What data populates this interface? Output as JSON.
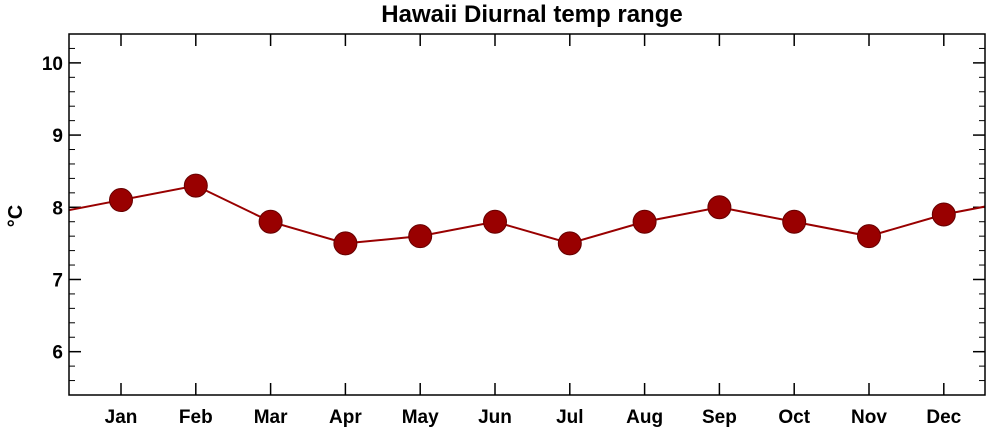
{
  "chart_data": {
    "type": "line",
    "title": "Hawaii Diurnal temp range",
    "xlabel": "",
    "ylabel": "°C",
    "categories": [
      "Jan",
      "Feb",
      "Mar",
      "Apr",
      "May",
      "Jun",
      "Jul",
      "Aug",
      "Sep",
      "Oct",
      "Nov",
      "Dec"
    ],
    "series": [
      {
        "values": [
          8.1,
          8.3,
          7.8,
          7.5,
          7.6,
          7.8,
          7.5,
          7.8,
          8.0,
          7.8,
          7.6,
          7.9
        ]
      }
    ],
    "ylim": [
      5.4,
      10.4
    ],
    "yticks": [
      6,
      7,
      8,
      9,
      10
    ],
    "ytick_labels": [
      "6",
      "7",
      "8",
      "9",
      "10"
    ],
    "cyclic": true,
    "grid": false,
    "legend": "none",
    "colors": {
      "series": "#990000",
      "axes": "#000000"
    }
  }
}
